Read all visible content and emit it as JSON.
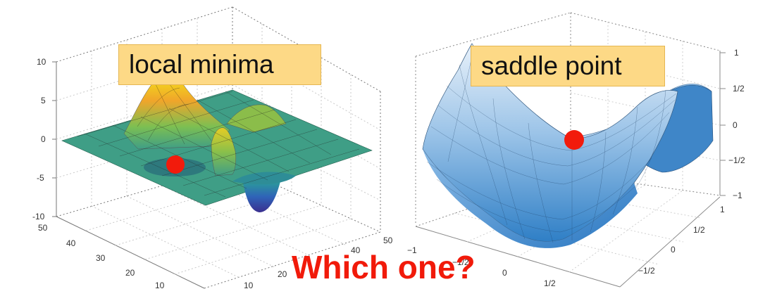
{
  "callouts": {
    "left": "local minima",
    "right": "saddle point"
  },
  "question": "Which one?",
  "left_plot": {
    "z_ticks": [
      "10",
      "5",
      "0",
      "-5",
      "-10"
    ],
    "y_ticks": [
      "50",
      "40",
      "30",
      "20",
      "10"
    ],
    "x_ticks": [
      "10",
      "20",
      "40",
      "50"
    ]
  },
  "right_plot": {
    "z_ticks": [
      "1",
      "1/2",
      "0",
      "−1/2",
      "−1"
    ],
    "y_ticks": [
      "1",
      "1/2",
      "0",
      "−1/2"
    ],
    "x_ticks": [
      "−1",
      "−1/2",
      "0",
      "1/2"
    ]
  },
  "colors": {
    "marker": "#f21b0c",
    "question": "#f11a0a",
    "callout_fill": "#fdd986",
    "surface_left_flat": "#3f9e86",
    "surface_right": "#3a88cc"
  }
}
